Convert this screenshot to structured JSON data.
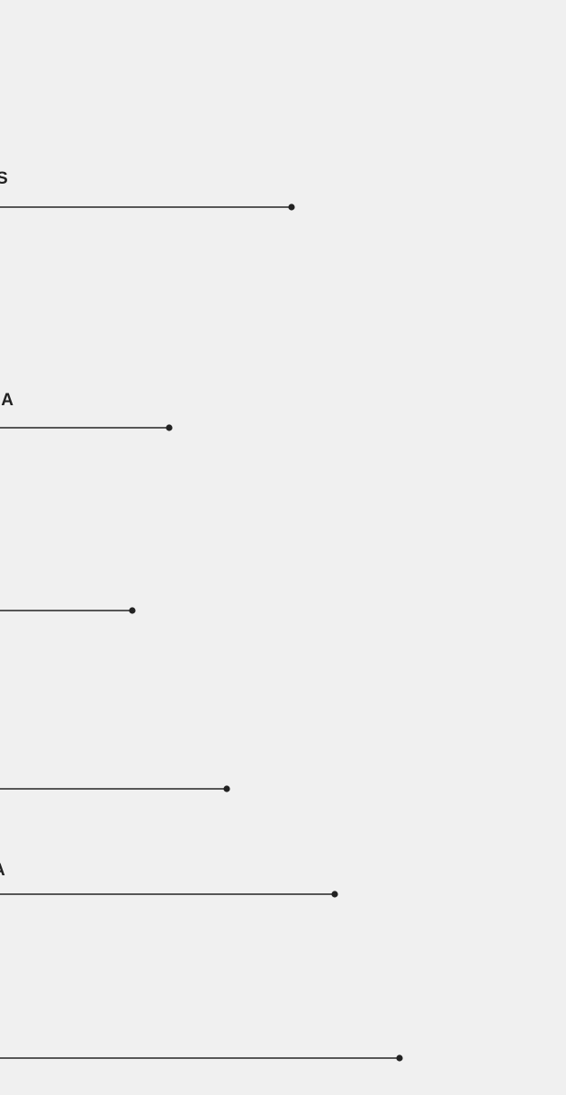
{
  "chart_data": {
    "type": "pie",
    "variant": "donut",
    "visible_portion": "left half",
    "colors": {
      "slice": "#cc1f2e",
      "separator": "#ffffff",
      "leader_line": "#222222",
      "background": "#f0f0f0"
    },
    "slices": [
      {
        "label": "S",
        "angle_start_deg": 270,
        "angle_end_deg": 335.5,
        "leader_visible": true
      },
      {
        "label": "IA",
        "angle_start_deg": 335.5,
        "angle_end_deg": 358.2,
        "leader_visible": true
      },
      {
        "label": "",
        "angle_start_deg": 358.2,
        "angle_end_deg": 382.3,
        "leader_visible": true
      },
      {
        "label": "",
        "angle_start_deg": 382.3,
        "angle_end_deg": 402.7,
        "leader_visible": true
      },
      {
        "label": "A",
        "angle_start_deg": 402.7,
        "angle_end_deg": 416.4,
        "leader_visible": true
      },
      {
        "label": "",
        "angle_start_deg": 416.4,
        "angle_end_deg": 450,
        "leader_visible": true
      }
    ]
  }
}
